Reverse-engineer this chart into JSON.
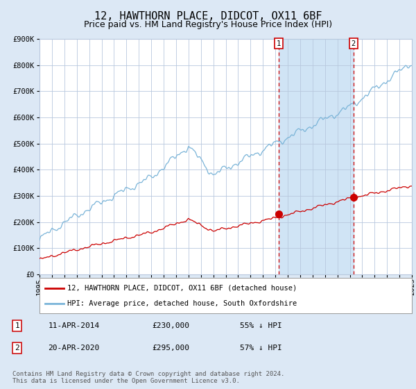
{
  "title": "12, HAWTHORN PLACE, DIDCOT, OX11 6BF",
  "subtitle": "Price paid vs. HM Land Registry's House Price Index (HPI)",
  "ylim": [
    0,
    900000
  ],
  "yticks": [
    0,
    100000,
    200000,
    300000,
    400000,
    500000,
    600000,
    700000,
    800000,
    900000
  ],
  "ytick_labels": [
    "£0",
    "£100K",
    "£200K",
    "£300K",
    "£400K",
    "£500K",
    "£600K",
    "£700K",
    "£800K",
    "£900K"
  ],
  "x_start_year": 1995,
  "x_end_year": 2025,
  "hpi_color": "#7ab4d8",
  "price_color": "#cc0000",
  "background_color": "#dce8f5",
  "plot_bg_color": "#ffffff",
  "grid_color": "#b8c8de",
  "sale1_year": 2014.27,
  "sale1_price": 230000,
  "sale1_label": "1",
  "sale2_year": 2020.3,
  "sale2_price": 295000,
  "sale2_label": "2",
  "shade_color": "#d0e4f5",
  "legend_line1": "12, HAWTHORN PLACE, DIDCOT, OX11 6BF (detached house)",
  "legend_line2": "HPI: Average price, detached house, South Oxfordshire",
  "table_row1": [
    "1",
    "11-APR-2014",
    "£230,000",
    "55% ↓ HPI"
  ],
  "table_row2": [
    "2",
    "20-APR-2020",
    "£295,000",
    "57% ↓ HPI"
  ],
  "footer": "Contains HM Land Registry data © Crown copyright and database right 2024.\nThis data is licensed under the Open Government Licence v3.0.",
  "title_fontsize": 11,
  "subtitle_fontsize": 9,
  "tick_fontsize": 7.5,
  "legend_fontsize": 7.5,
  "footer_fontsize": 6.5
}
